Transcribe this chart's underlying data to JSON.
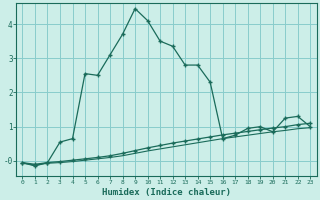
{
  "xlabel": "Humidex (Indice chaleur)",
  "background_color": "#cceee8",
  "grid_color": "#88cccc",
  "line_color": "#1a6b5a",
  "x_ticks": [
    0,
    1,
    2,
    3,
    4,
    5,
    6,
    7,
    8,
    9,
    10,
    11,
    12,
    13,
    14,
    15,
    16,
    17,
    18,
    19,
    20,
    21,
    22,
    23
  ],
  "y_ticks": [
    0,
    1,
    2,
    3,
    4
  ],
  "y_tick_labels": [
    "-0",
    "1",
    "2",
    "3",
    "4"
  ],
  "ylim": [
    -0.45,
    4.6
  ],
  "xlim": [
    -0.5,
    23.5
  ],
  "series1_x": [
    0,
    1,
    2,
    3,
    4,
    5,
    6,
    7,
    8,
    9,
    10,
    11,
    12,
    13,
    14,
    15,
    16,
    17,
    18,
    19,
    20,
    21,
    22,
    23
  ],
  "series1_y": [
    -0.05,
    -0.15,
    -0.05,
    0.55,
    0.65,
    2.55,
    2.5,
    3.1,
    3.7,
    4.45,
    4.1,
    3.5,
    3.35,
    2.8,
    2.8,
    2.3,
    0.65,
    0.75,
    0.95,
    1.0,
    0.85,
    1.25,
    1.3,
    1.0
  ],
  "series2_x": [
    0,
    1,
    2,
    3,
    4,
    5,
    6,
    7,
    8,
    9,
    10,
    11,
    12,
    13,
    14,
    15,
    16,
    17,
    18,
    19,
    20,
    21,
    22,
    23
  ],
  "series2_y": [
    -0.05,
    -0.1,
    -0.05,
    -0.02,
    0.02,
    0.06,
    0.1,
    0.15,
    0.22,
    0.3,
    0.38,
    0.45,
    0.52,
    0.58,
    0.64,
    0.7,
    0.76,
    0.81,
    0.86,
    0.91,
    0.96,
    1.0,
    1.06,
    1.1
  ],
  "series3_x": [
    0,
    1,
    2,
    3,
    4,
    5,
    6,
    7,
    8,
    9,
    10,
    11,
    12,
    13,
    14,
    15,
    16,
    17,
    18,
    19,
    20,
    21,
    22,
    23
  ],
  "series3_y": [
    -0.07,
    -0.12,
    -0.07,
    -0.05,
    -0.02,
    0.02,
    0.06,
    0.1,
    0.15,
    0.22,
    0.29,
    0.35,
    0.41,
    0.47,
    0.53,
    0.59,
    0.65,
    0.7,
    0.75,
    0.8,
    0.85,
    0.89,
    0.94,
    0.97
  ]
}
